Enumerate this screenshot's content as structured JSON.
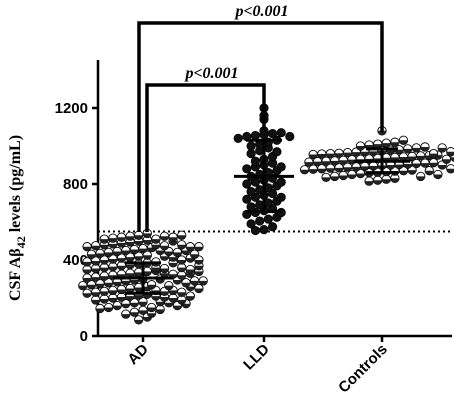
{
  "chart_data": {
    "type": "scatter",
    "ylabel": "CSF Aβ42 levels (pg/mL)",
    "ylabel_main": "CSF A",
    "ylabel_beta": "β",
    "ylabel_sub": "42",
    "ylabel_tail": " levels (pg/mL)",
    "ylim": [
      0,
      1300
    ],
    "yticks": [
      0,
      400,
      800,
      1200
    ],
    "ytick_labels": [
      "0",
      "400",
      "800",
      "1200"
    ],
    "grid": false,
    "categories": [
      "AD",
      "LLD",
      "Controls"
    ],
    "threshold": 550,
    "point_style": [
      "half-filled",
      "filled",
      "half-filled"
    ],
    "series": [
      {
        "category": "AD",
        "mean": 305,
        "sd_low": 225,
        "sd_high": 385,
        "values": [
          85,
          100,
          115,
          125,
          135,
          145,
          150,
          160,
          170,
          175,
          180,
          190,
          195,
          200,
          205,
          210,
          215,
          220,
          225,
          230,
          235,
          240,
          245,
          250,
          255,
          260,
          265,
          270,
          275,
          280,
          285,
          290,
          295,
          300,
          305,
          310,
          315,
          320,
          325,
          330,
          335,
          340,
          345,
          350,
          355,
          360,
          365,
          370,
          375,
          380,
          385,
          390,
          395,
          400,
          405,
          410,
          415,
          420,
          425,
          430,
          435,
          440,
          445,
          450,
          455,
          460,
          465,
          470,
          475,
          480,
          485,
          490,
          495,
          500,
          505,
          510,
          515,
          520,
          525,
          530,
          540,
          120,
          150,
          180,
          210,
          240,
          270,
          300,
          330,
          360,
          390,
          420,
          450,
          480,
          510,
          140,
          175,
          205,
          235,
          265,
          295,
          325,
          355,
          385,
          415,
          445,
          475,
          500,
          525,
          160,
          200,
          240,
          280,
          320,
          360,
          400,
          440,
          480,
          520,
          170,
          230,
          290,
          350,
          410,
          470,
          530,
          190,
          260,
          330,
          400,
          470,
          210,
          290,
          370,
          450,
          250,
          340,
          430
        ]
      },
      {
        "category": "LLD",
        "mean": 840,
        "sd_low": 655,
        "sd_high": 1030,
        "values": [
          555,
          560,
          575,
          590,
          605,
          615,
          625,
          640,
          650,
          660,
          670,
          680,
          690,
          700,
          710,
          720,
          730,
          740,
          750,
          760,
          770,
          780,
          790,
          800,
          810,
          820,
          830,
          840,
          850,
          860,
          870,
          880,
          890,
          900,
          910,
          920,
          930,
          945,
          960,
          975,
          990,
          1000,
          1010,
          1020,
          1030,
          1040,
          1050,
          1055,
          1060,
          1065,
          1070,
          1080,
          1140,
          1160,
          1200,
          650,
          730,
          810,
          890,
          970,
          1050
        ]
      },
      {
        "category": "Controls",
        "mean": 920,
        "sd_low": 860,
        "sd_high": 985,
        "values": [
          815,
          820,
          825,
          830,
          835,
          840,
          845,
          850,
          855,
          860,
          862,
          865,
          868,
          870,
          873,
          875,
          878,
          880,
          883,
          885,
          888,
          890,
          893,
          895,
          898,
          900,
          902,
          905,
          908,
          910,
          912,
          915,
          918,
          920,
          922,
          925,
          928,
          930,
          932,
          935,
          938,
          940,
          942,
          945,
          948,
          950,
          952,
          955,
          958,
          960,
          962,
          965,
          968,
          970,
          972,
          975,
          978,
          980,
          985,
          990,
          995,
          1000,
          1005,
          1010,
          1015,
          1020,
          1030,
          1080,
          840,
          870,
          900,
          930,
          960,
          990,
          850,
          880,
          910,
          940,
          970
        ]
      }
    ],
    "comparisons": [
      {
        "from": "AD",
        "to": "LLD",
        "label": "p<0.001"
      },
      {
        "from": "AD",
        "to": "Controls",
        "label": "p<0.001"
      }
    ]
  }
}
